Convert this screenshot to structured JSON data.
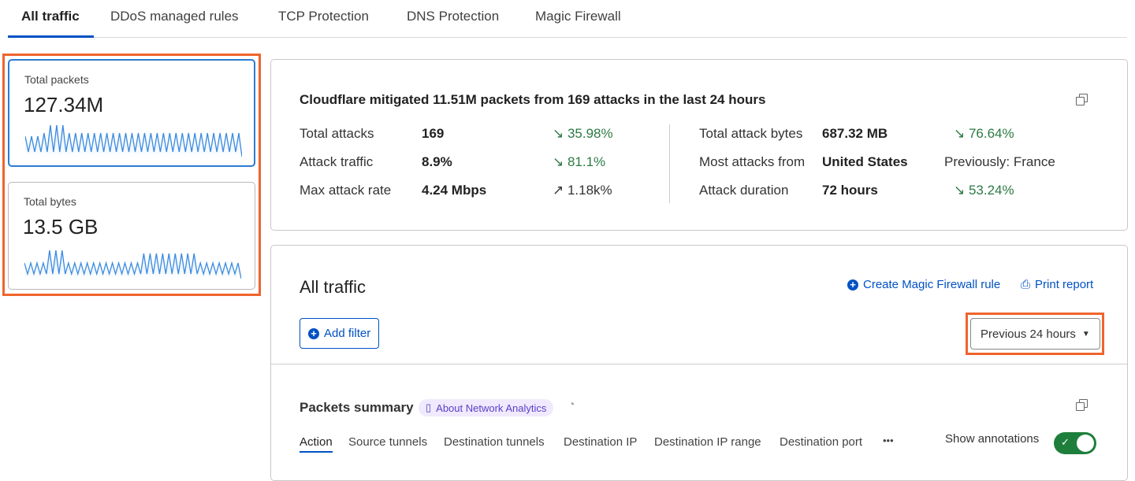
{
  "tabs": [
    "All traffic",
    "DDoS managed rules",
    "TCP Protection",
    "DNS Protection",
    "Magic Firewall"
  ],
  "metrics": [
    {
      "label": "Total packets",
      "value": "127.34M"
    },
    {
      "label": "Total bytes",
      "value": "13.5 GB"
    }
  ],
  "summary": {
    "headline": "Cloudflare mitigated 11.51M packets from 169 attacks in the last 24 hours",
    "left": [
      {
        "label": "Total attacks",
        "value": "169",
        "change": "35.98%",
        "trend": "down"
      },
      {
        "label": "Attack traffic",
        "value": "8.9%",
        "change": "81.1%",
        "trend": "down"
      },
      {
        "label": "Max attack rate",
        "value": "4.24 Mbps",
        "change": "1.18k%",
        "trend": "up"
      }
    ],
    "right": [
      {
        "label": "Total attack bytes",
        "value": "687.32 MB",
        "change": "76.64%",
        "trend": "down"
      },
      {
        "label": "Most attacks from",
        "value": "United States",
        "change": "Previously: France",
        "trend": ""
      },
      {
        "label": "Attack duration",
        "value": "72 hours",
        "change": "53.24%",
        "trend": "down"
      }
    ]
  },
  "traffic": {
    "title": "All traffic",
    "create_rule": "Create Magic Firewall rule",
    "print": "Print report",
    "add_filter": "Add filter",
    "time_range": "Previous 24 hours",
    "packets_summary": "Packets summary",
    "about": "About Network Analytics",
    "subtabs": [
      "Action",
      "Source tunnels",
      "Destination tunnels",
      "Destination IP",
      "Destination IP range",
      "Destination port"
    ],
    "more": "•••",
    "show_annotations": "Show annotations",
    "annotations_on": true
  },
  "colors": {
    "accent": "#0051c3",
    "highlight": "#f0642c",
    "positive": "#2d7a45",
    "toggle": "#1e7f3c"
  }
}
